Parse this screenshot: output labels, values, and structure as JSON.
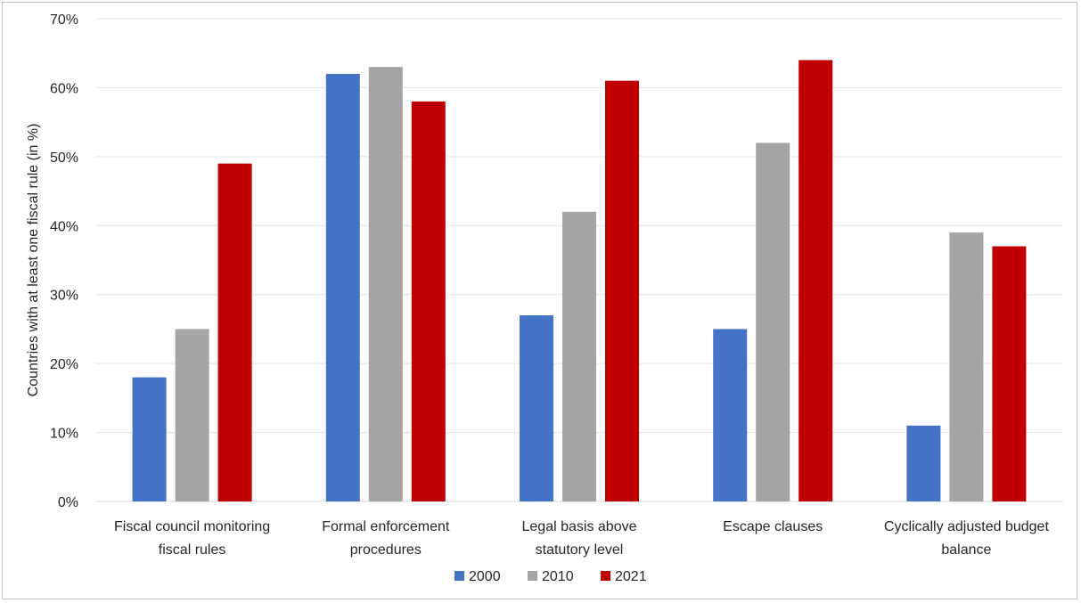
{
  "chart_data": {
    "type": "bar",
    "categories": [
      [
        "Fiscal council monitoring",
        "fiscal rules"
      ],
      [
        "Formal enforcement",
        "procedures"
      ],
      [
        "Legal basis above",
        "statutory level"
      ],
      [
        "Escape clauses"
      ],
      [
        "Cyclically adjusted budget",
        "balance"
      ]
    ],
    "series": [
      {
        "name": "2000",
        "color": "#4472c4",
        "values": [
          18,
          62,
          27,
          25,
          11
        ]
      },
      {
        "name": "2010",
        "color": "#a5a5a5",
        "values": [
          25,
          63,
          42,
          52,
          39
        ]
      },
      {
        "name": "2021",
        "color": "#c00000",
        "values": [
          49,
          58,
          61,
          64,
          37
        ]
      }
    ],
    "ylabel": "Countries with at least one fiscal rule (in %)",
    "ylim": [
      0,
      70
    ],
    "yticks": [
      0,
      10,
      20,
      30,
      40,
      50,
      60,
      70
    ],
    "ytick_suffix": "%",
    "grid": true,
    "legend": "bottom-center"
  }
}
